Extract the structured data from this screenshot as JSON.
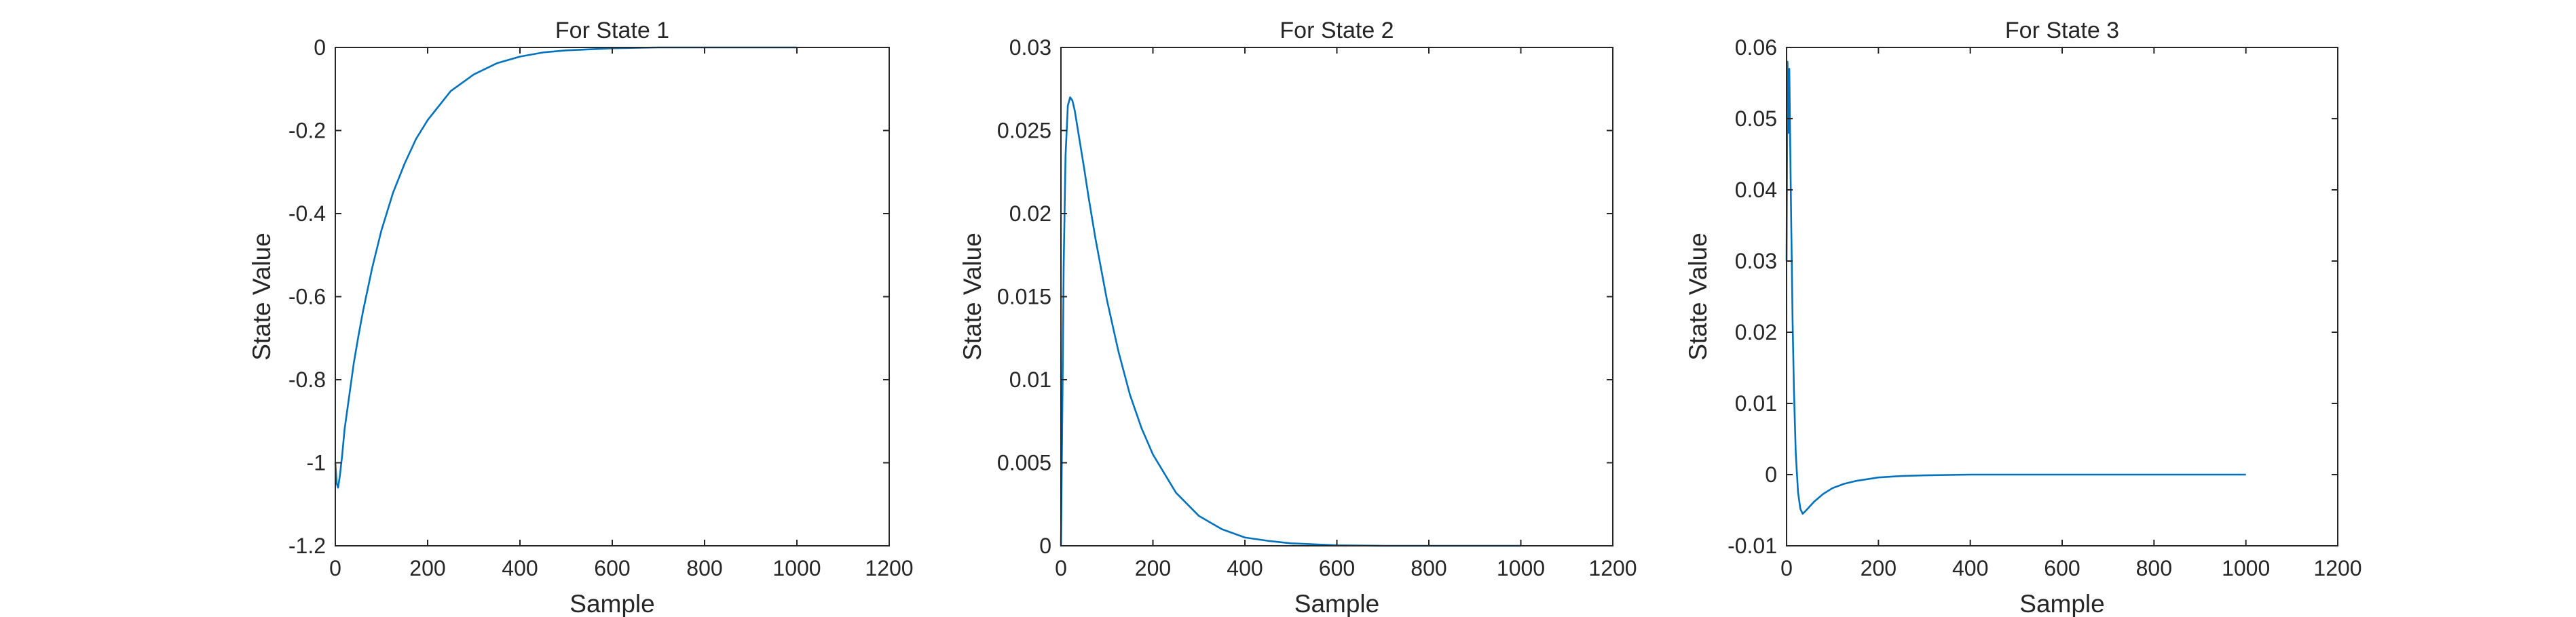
{
  "figure": {
    "background": "#ffffff",
    "axes_color": "#262626",
    "line_color": "#0072bd"
  },
  "chart_data": [
    {
      "type": "line",
      "title": "For State 1",
      "xlabel": "Sample",
      "ylabel": "State Value",
      "xlim": [
        0,
        1200
      ],
      "ylim": [
        -1.2,
        0
      ],
      "xticks": [
        0,
        200,
        400,
        600,
        800,
        1000,
        1200
      ],
      "xtick_labels": [
        "0",
        "200",
        "400",
        "600",
        "800",
        "1000",
        "1200"
      ],
      "yticks": [
        0,
        -0.2,
        -0.4,
        -0.6,
        -0.8,
        -1,
        -1.2
      ],
      "ytick_labels": [
        "0",
        "-0.2",
        "-0.4",
        "-0.6",
        "-0.8",
        "-1",
        "-1.2"
      ],
      "grid": false,
      "series": [
        {
          "x": [
            0,
            3,
            6,
            10,
            15,
            20,
            30,
            40,
            50,
            60,
            80,
            100,
            125,
            150,
            175,
            200,
            250,
            300,
            350,
            400,
            450,
            500,
            600,
            700,
            800,
            900,
            1000
          ],
          "y": [
            -1.0,
            -1.05,
            -1.06,
            -1.03,
            -0.98,
            -0.92,
            -0.84,
            -0.76,
            -0.695,
            -0.635,
            -0.53,
            -0.44,
            -0.35,
            -0.28,
            -0.22,
            -0.175,
            -0.105,
            -0.065,
            -0.038,
            -0.022,
            -0.012,
            -0.007,
            -0.002,
            0.0,
            0.0,
            0.0,
            0.0
          ]
        }
      ]
    },
    {
      "type": "line",
      "title": "For State 2",
      "xlabel": "Sample",
      "ylabel": "State Value",
      "xlim": [
        0,
        1200
      ],
      "ylim": [
        0,
        0.03
      ],
      "xticks": [
        0,
        200,
        400,
        600,
        800,
        1000,
        1200
      ],
      "xtick_labels": [
        "0",
        "200",
        "400",
        "600",
        "800",
        "1000",
        "1200"
      ],
      "yticks": [
        0,
        0.005,
        0.01,
        0.015,
        0.02,
        0.025,
        0.03
      ],
      "ytick_labels": [
        "0",
        "0.005",
        "0.01",
        "0.015",
        "0.02",
        "0.025",
        "0.03"
      ],
      "grid": false,
      "series": [
        {
          "x": [
            0,
            3,
            6,
            10,
            15,
            20,
            25,
            30,
            40,
            50,
            60,
            75,
            100,
            125,
            150,
            175,
            200,
            250,
            300,
            350,
            400,
            450,
            500,
            600,
            700,
            800,
            900,
            1000
          ],
          "y": [
            0.0,
            0.008,
            0.017,
            0.0235,
            0.0265,
            0.027,
            0.0268,
            0.0262,
            0.0245,
            0.0228,
            0.021,
            0.0185,
            0.0148,
            0.0117,
            0.0091,
            0.0071,
            0.0055,
            0.0032,
            0.0018,
            0.001,
            0.0005,
            0.0003,
            0.00015,
            3e-05,
            0.0,
            0.0,
            0.0,
            0.0
          ]
        }
      ]
    },
    {
      "type": "line",
      "title": "For State 3",
      "xlabel": "Sample",
      "ylabel": "State Value",
      "xlim": [
        0,
        1200
      ],
      "ylim": [
        -0.01,
        0.06
      ],
      "xticks": [
        0,
        200,
        400,
        600,
        800,
        1000,
        1200
      ],
      "xtick_labels": [
        "0",
        "200",
        "400",
        "600",
        "800",
        "1000",
        "1200"
      ],
      "yticks": [
        -0.01,
        0,
        0.01,
        0.02,
        0.03,
        0.04,
        0.05,
        0.06
      ],
      "ytick_labels": [
        "-0.01",
        "0",
        "0.01",
        "0.02",
        "0.03",
        "0.04",
        "0.05",
        "0.06"
      ],
      "grid": false,
      "series": [
        {
          "x": [
            0,
            2,
            4,
            6,
            8,
            10,
            13,
            16,
            20,
            25,
            30,
            35,
            40,
            50,
            60,
            80,
            100,
            125,
            150,
            200,
            250,
            300,
            400,
            500,
            600,
            800,
            1000
          ],
          "y": [
            0.03,
            0.058,
            0.048,
            0.057,
            0.046,
            0.036,
            0.022,
            0.012,
            0.003,
            -0.0025,
            -0.0048,
            -0.0055,
            -0.0052,
            -0.0045,
            -0.0038,
            -0.0027,
            -0.0019,
            -0.0013,
            -0.0009,
            -0.0004,
            -0.0002,
            -0.0001,
            0.0,
            0.0,
            0.0,
            0.0,
            0.0
          ]
        }
      ]
    }
  ]
}
